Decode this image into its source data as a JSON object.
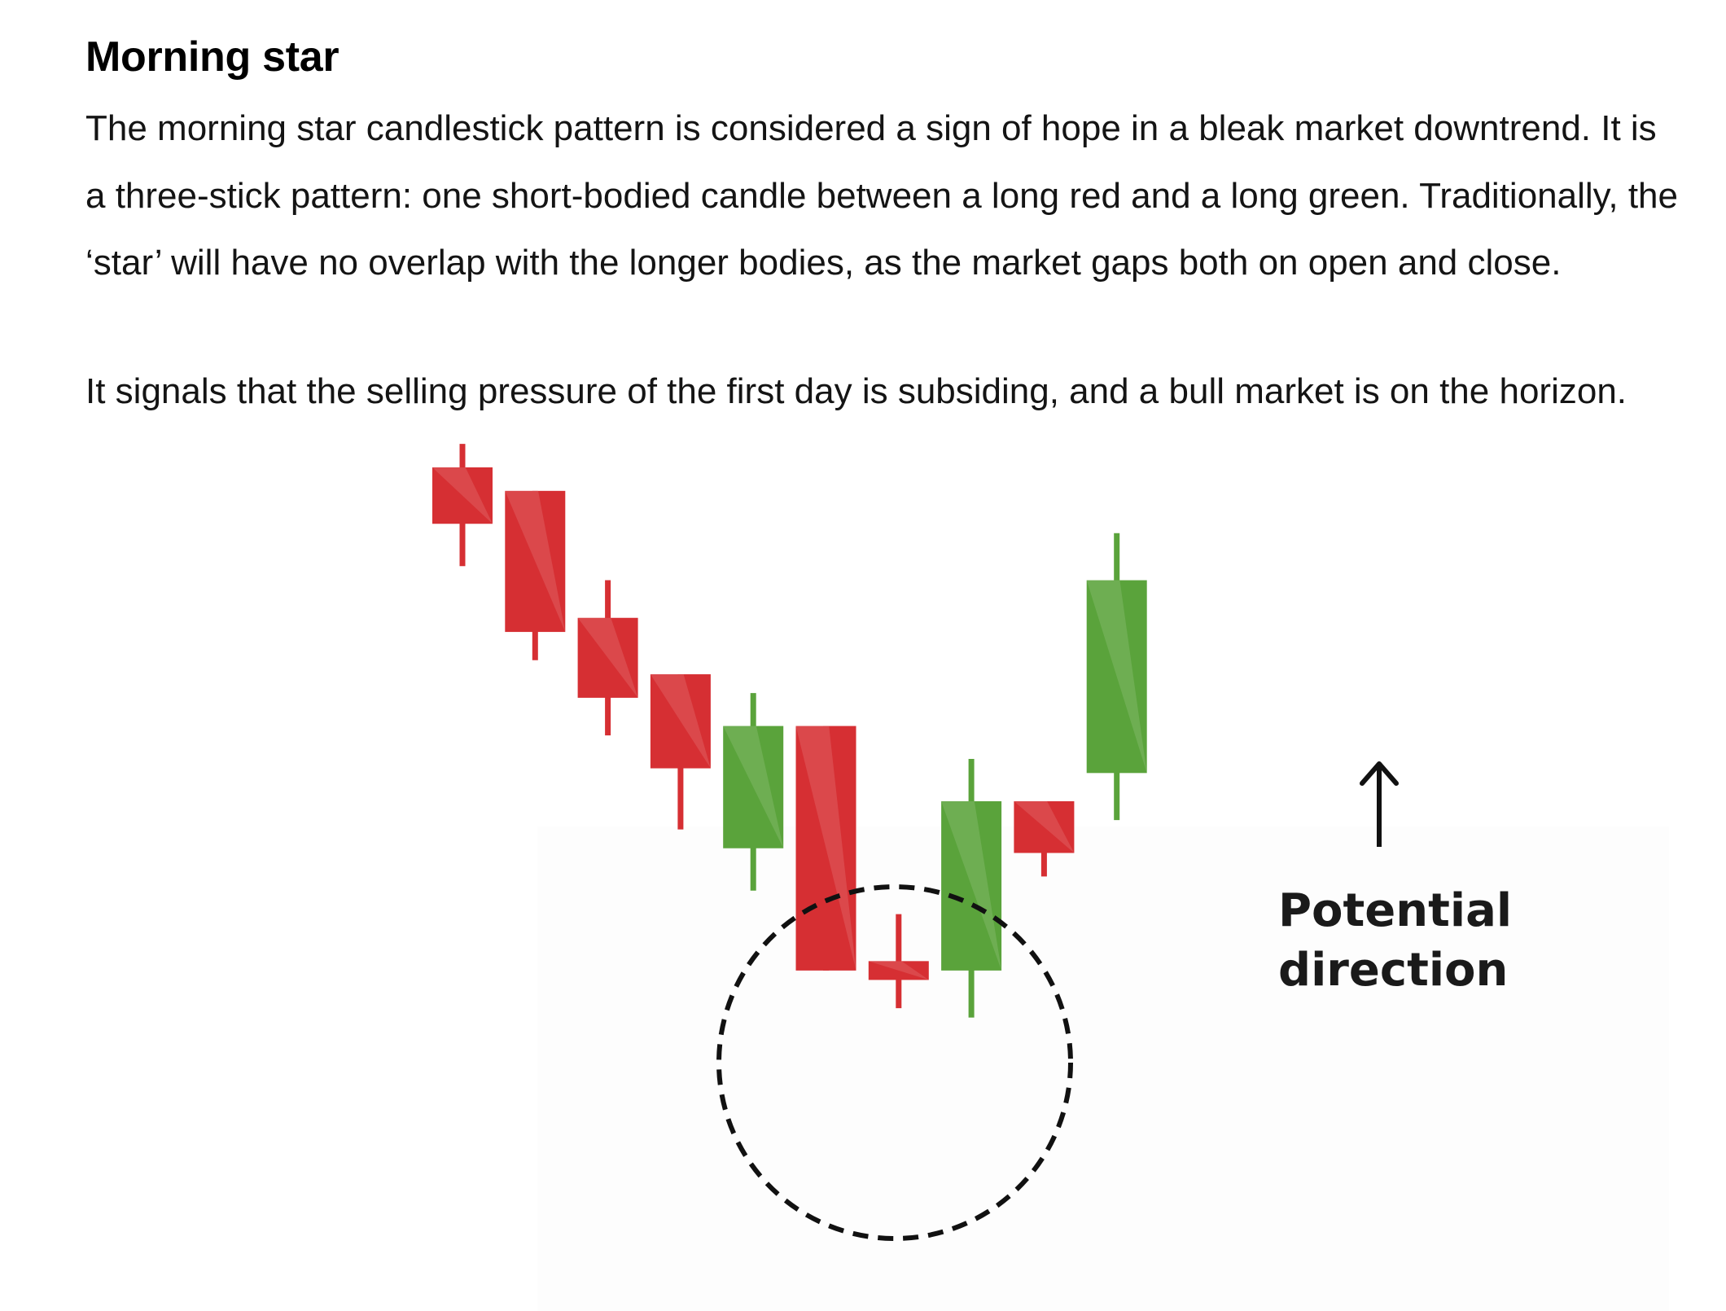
{
  "article": {
    "heading": "Morning star",
    "paragraph_1": "The morning star candlestick pattern is considered a sign of hope in a bleak market downtrend. It is a three-stick pattern: one short-bodied candle between a long red and a long green. Traditionally, the ‘star’ will have no overlap with the longer bodies, as the market gaps both on open and close.",
    "paragraph_2": "It signals that the selling pressure of the first day is subsiding, and a bull market is on the horizon."
  },
  "figure": {
    "label_line_1": "Potential",
    "label_line_2": "direction",
    "arrow_icon": "up-arrow-icon",
    "colors": {
      "bearish": "#d62f33",
      "bullish": "#5aa33b",
      "circle": "#111111"
    },
    "candles": [
      {
        "type": "bearish",
        "open": 91.0,
        "close": 85.0,
        "high": 93.5,
        "low": 80.5
      },
      {
        "type": "bearish",
        "open": 88.5,
        "close": 73.5,
        "high": 88.5,
        "low": 70.5
      },
      {
        "type": "bearish",
        "open": 75.0,
        "close": 66.5,
        "high": 79.0,
        "low": 62.5
      },
      {
        "type": "bearish",
        "open": 69.0,
        "close": 59.0,
        "high": 69.0,
        "low": 52.5
      },
      {
        "type": "bullish",
        "open": 50.5,
        "close": 63.5,
        "high": 67.0,
        "low": 46.0
      },
      {
        "type": "bearish",
        "open": 63.5,
        "close": 37.5,
        "high": 63.5,
        "low": 37.5
      },
      {
        "type": "bearish",
        "open": 38.5,
        "close": 36.5,
        "high": 43.5,
        "low": 33.5
      },
      {
        "type": "bullish",
        "open": 37.5,
        "close": 55.5,
        "high": 60.0,
        "low": 32.5
      },
      {
        "type": "bearish",
        "open": 55.5,
        "close": 50.0,
        "high": 55.5,
        "low": 47.5
      },
      {
        "type": "bullish",
        "open": 58.5,
        "close": 79.0,
        "high": 84.0,
        "low": 53.5
      }
    ]
  }
}
